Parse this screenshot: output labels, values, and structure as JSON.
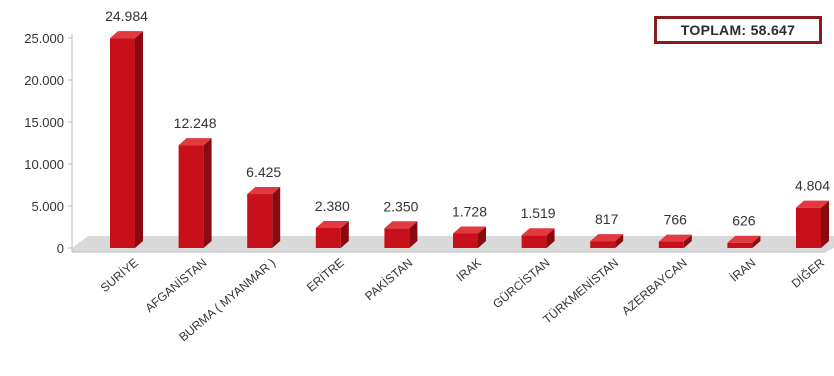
{
  "total_label": "TOPLAM: 58.647",
  "chart_data": {
    "type": "bar",
    "categories": [
      "SURİYE",
      "AFGANİSTAN",
      "BURMA ( MYANMAR )",
      "ERİTRE",
      "PAKİSTAN",
      "IRAK",
      "GÜRCİSTAN",
      "TÜRKMENİSTAN",
      "AZERBAYCAN",
      "İRAN",
      "DİĞER"
    ],
    "values": [
      24984,
      12248,
      6425,
      2380,
      2350,
      1728,
      1519,
      817,
      766,
      626,
      4804
    ],
    "data_labels": [
      "24.984",
      "12.248",
      "6.425",
      "2.380",
      "2.350",
      "1.728",
      "1.519",
      "817",
      "766",
      "626",
      "4.804"
    ],
    "y_ticks": [
      0,
      5000,
      10000,
      15000,
      20000,
      25000
    ],
    "y_tick_labels": [
      "0",
      "5.000",
      "10.000",
      "15.000",
      "20.000",
      "25.000"
    ],
    "ylim": [
      0,
      25000
    ],
    "title": "",
    "xlabel": "",
    "ylabel": "",
    "grid": false,
    "legend": "none",
    "colors": {
      "bar_front": "#c8101a",
      "bar_side": "#8a0a12",
      "bar_top": "#e23a3f",
      "floor": "#d9d9d9",
      "total_border": "#8b1a1f",
      "text": "#333333"
    }
  }
}
